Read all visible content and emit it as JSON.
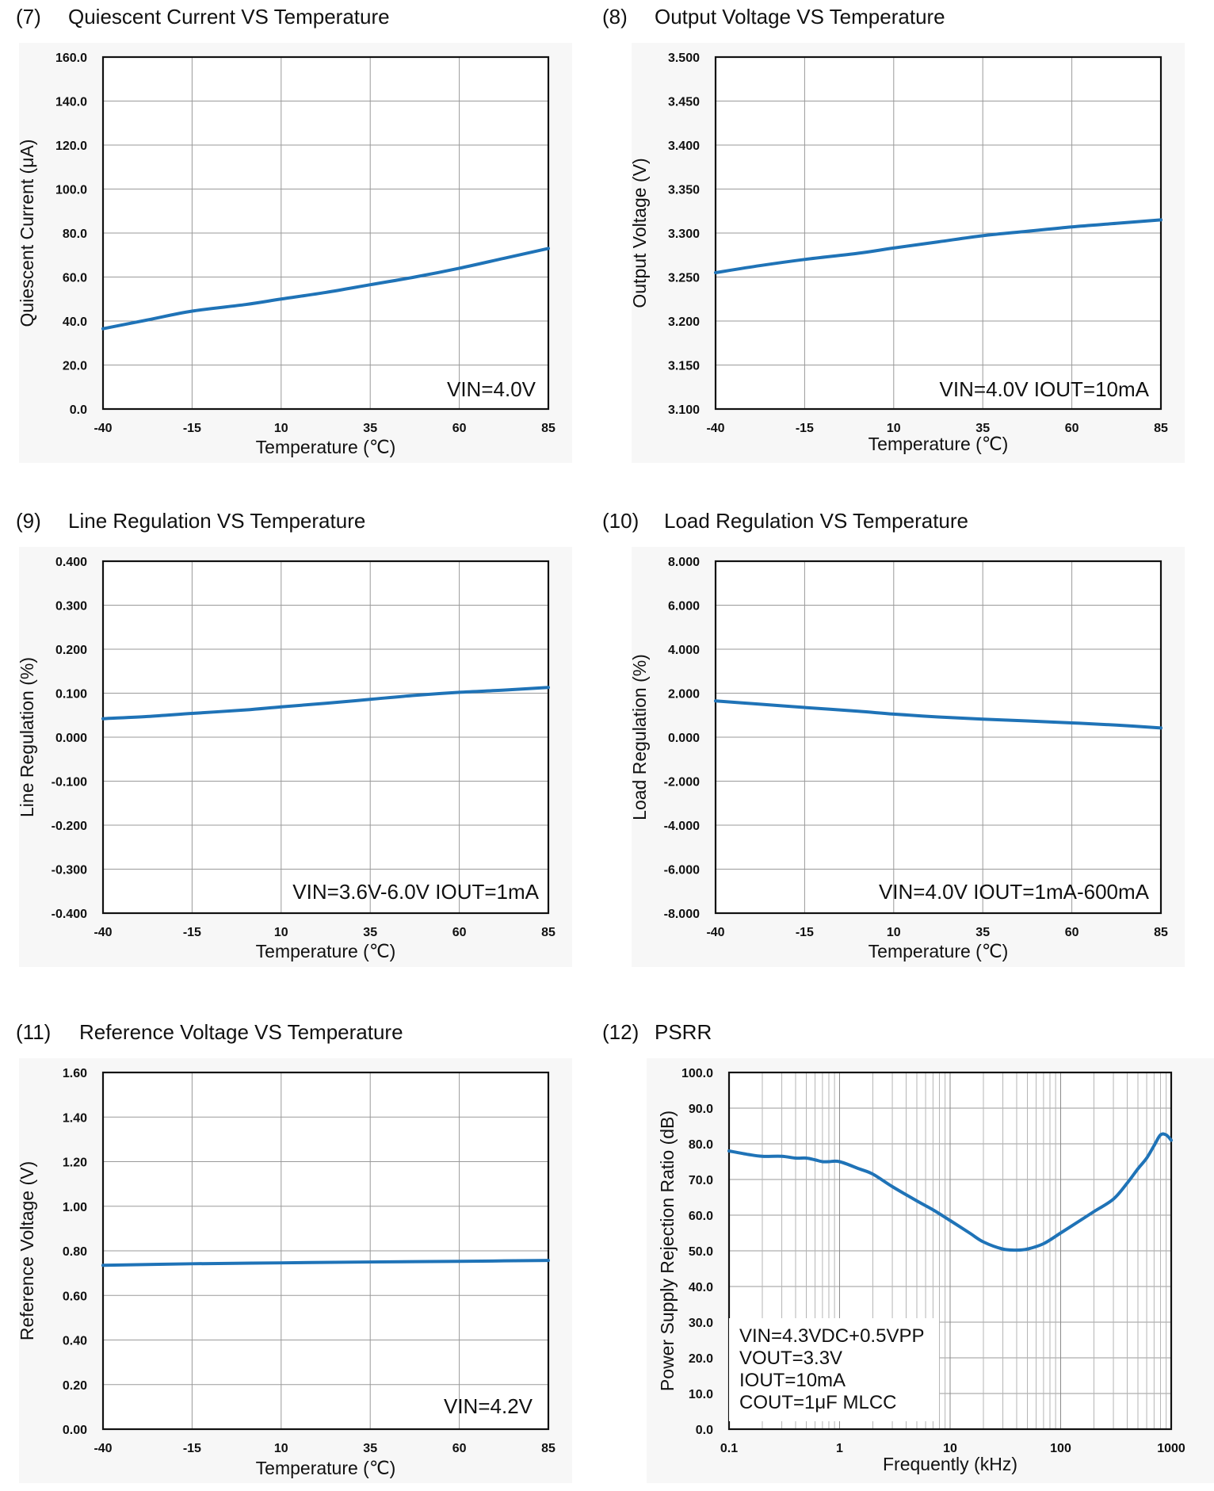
{
  "line_color": "#1f73b7",
  "chart_data": [
    {
      "type": "line",
      "index": "(7)",
      "title": "Quiescent Current VS Temperature",
      "xlabel": "Temperature (℃)",
      "ylabel": "Quiescent Current  (μA)",
      "x_ticks": [
        "-40",
        "-15",
        "10",
        "35",
        "60",
        "85"
      ],
      "y_ticks": [
        "0.0",
        "20.0",
        "40.0",
        "60.0",
        "80.0",
        "100.0",
        "120.0",
        "140.0",
        "160.0"
      ],
      "xlim": [
        -40,
        85
      ],
      "ylim": [
        0,
        160
      ],
      "xscale": "linear",
      "annotation": [
        "VIN=4.0V"
      ],
      "series": [
        {
          "name": "Quiescent Current",
          "x": [
            -40,
            -27.5,
            -15,
            0,
            10,
            22.5,
            35,
            47.5,
            60,
            72.5,
            85
          ],
          "y": [
            36.5,
            40.5,
            44.5,
            47.5,
            50,
            53,
            56.5,
            60,
            64,
            68.5,
            73
          ]
        }
      ]
    },
    {
      "type": "line",
      "index": "(8)",
      "title": "Output Voltage VS Temperature",
      "xlabel": "Temperature (℃)",
      "ylabel": "Output Voltage (V)",
      "x_ticks": [
        "-40",
        "-15",
        "10",
        "35",
        "60",
        "85"
      ],
      "y_ticks": [
        "3.100",
        "3.150",
        "3.200",
        "3.250",
        "3.300",
        "3.350",
        "3.400",
        "3.450",
        "3.500"
      ],
      "xlim": [
        -40,
        85
      ],
      "ylim": [
        3.1,
        3.5
      ],
      "xscale": "linear",
      "annotation": [
        "VIN=4.0V IOUT=10mA"
      ],
      "series": [
        {
          "name": "Output Voltage",
          "x": [
            -40,
            -27.5,
            -15,
            0,
            10,
            22.5,
            35,
            47.5,
            60,
            72.5,
            85
          ],
          "y": [
            3.255,
            3.263,
            3.27,
            3.277,
            3.283,
            3.29,
            3.297,
            3.302,
            3.307,
            3.311,
            3.315
          ]
        }
      ]
    },
    {
      "type": "line",
      "index": "(9)",
      "title": "Line Regulation VS Temperature",
      "xlabel": "Temperature (℃)",
      "ylabel": "Line Regulation  (%)",
      "x_ticks": [
        "-40",
        "-15",
        "10",
        "35",
        "60",
        "85"
      ],
      "y_ticks": [
        "-0.400",
        "-0.300",
        "-0.200",
        "-0.100",
        "0.000",
        "0.100",
        "0.200",
        "0.300",
        "0.400"
      ],
      "xlim": [
        -40,
        85
      ],
      "ylim": [
        -0.4,
        0.4
      ],
      "xscale": "linear",
      "annotation": [
        "VIN=3.6V-6.0V IOUT=1mA"
      ],
      "series": [
        {
          "name": "Line Regulation",
          "x": [
            -40,
            -27.5,
            -15,
            0,
            10,
            22.5,
            35,
            47.5,
            60,
            72.5,
            85
          ],
          "y": [
            0.042,
            0.047,
            0.054,
            0.062,
            0.069,
            0.077,
            0.086,
            0.095,
            0.102,
            0.107,
            0.113
          ]
        }
      ]
    },
    {
      "type": "line",
      "index": "(10)",
      "title": "Load Regulation VS Temperature",
      "xlabel": "Temperature (℃)",
      "ylabel": "Load Regulation  (%)",
      "x_ticks": [
        "-40",
        "-15",
        "10",
        "35",
        "60",
        "85"
      ],
      "y_ticks": [
        "-8.000",
        "-6.000",
        "-4.000",
        "-2.000",
        "0.000",
        "2.000",
        "4.000",
        "6.000",
        "8.000"
      ],
      "xlim": [
        -40,
        85
      ],
      "ylim": [
        -8,
        8
      ],
      "xscale": "linear",
      "annotation": [
        "VIN=4.0V IOUT=1mA-600mA"
      ],
      "series": [
        {
          "name": "Load Regulation",
          "x": [
            -40,
            -27.5,
            -15,
            0,
            10,
            22.5,
            35,
            47.5,
            60,
            72.5,
            85
          ],
          "y": [
            1.65,
            1.5,
            1.35,
            1.18,
            1.05,
            0.92,
            0.82,
            0.74,
            0.65,
            0.55,
            0.42
          ]
        }
      ]
    },
    {
      "type": "line",
      "index": "(11)",
      "title": "Reference Voltage VS Temperature",
      "xlabel": "Temperature (℃)",
      "ylabel": "Reference Voltage (V)",
      "x_ticks": [
        "-40",
        "-15",
        "10",
        "35",
        "60",
        "85"
      ],
      "y_ticks": [
        "0.00",
        "0.20",
        "0.40",
        "0.60",
        "0.80",
        "1.00",
        "1.20",
        "1.40",
        "1.60"
      ],
      "xlim": [
        -40,
        85
      ],
      "ylim": [
        0,
        1.6
      ],
      "xscale": "linear",
      "annotation": [
        "VIN=4.2V"
      ],
      "series": [
        {
          "name": "Reference Voltage",
          "x": [
            -40,
            -15,
            10,
            35,
            60,
            85
          ],
          "y": [
            0.735,
            0.742,
            0.746,
            0.75,
            0.753,
            0.757
          ]
        }
      ]
    },
    {
      "type": "line",
      "index": "(12)",
      "title": "PSRR",
      "xlabel": "Frequently (kHz)",
      "ylabel": "Power Supply Rejection Ratio (dB)",
      "x_ticks": [
        "0.1",
        "1",
        "10",
        "100",
        "1000"
      ],
      "y_ticks": [
        "0.0",
        "10.0",
        "20.0",
        "30.0",
        "40.0",
        "50.0",
        "60.0",
        "70.0",
        "80.0",
        "90.0",
        "100.0"
      ],
      "xlim": [
        0.1,
        1000
      ],
      "ylim": [
        0,
        100
      ],
      "xscale": "log",
      "annotation": [
        "VIN=4.3VDC+0.5VPP",
        "VOUT=3.3V",
        "IOUT=10mA",
        "COUT=1μF MLCC"
      ],
      "series": [
        {
          "name": "PSRR",
          "x": [
            0.1,
            0.15,
            0.2,
            0.3,
            0.4,
            0.5,
            0.6,
            0.7,
            0.8,
            1.0,
            1.5,
            2,
            3,
            5,
            7,
            10,
            15,
            20,
            30,
            40,
            50,
            70,
            100,
            150,
            200,
            300,
            400,
            500,
            600,
            700,
            800,
            900,
            1000
          ],
          "y": [
            78,
            77,
            76.5,
            76.5,
            76,
            76,
            75.5,
            75,
            75,
            75,
            73,
            71.5,
            68,
            64,
            61.5,
            58.5,
            55,
            52.5,
            50.5,
            50.2,
            50.5,
            52,
            55,
            58.5,
            61,
            64.5,
            69,
            73,
            76,
            79.5,
            82.5,
            82.5,
            81
          ]
        }
      ]
    }
  ]
}
